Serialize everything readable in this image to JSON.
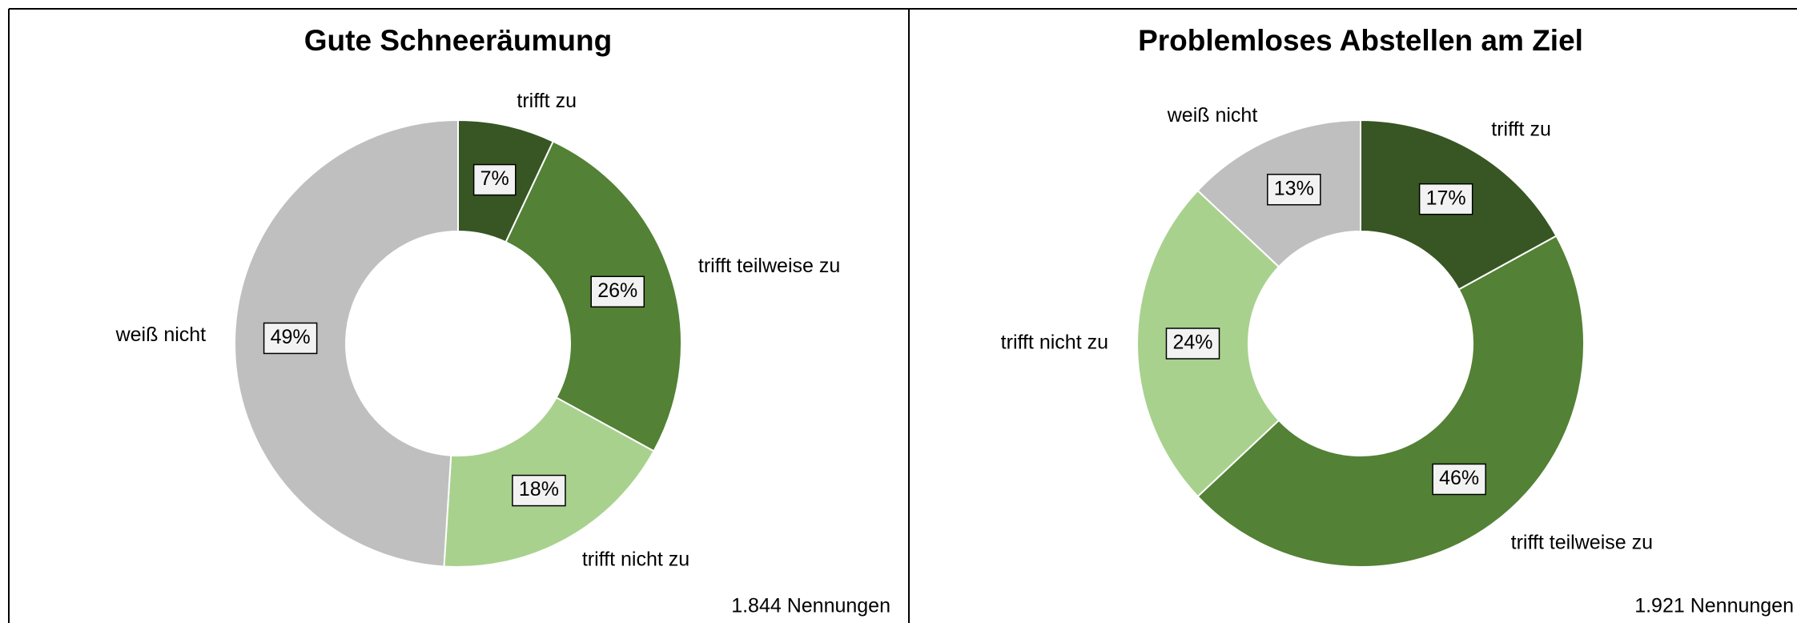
{
  "chart_data": [
    {
      "type": "donut",
      "title": "Gute Schneeräumung",
      "categories": [
        "trifft zu",
        "trifft teilweise zu",
        "trifft nicht zu",
        "weiß nicht"
      ],
      "values": [
        7,
        26,
        18,
        49
      ],
      "value_labels": [
        "7%",
        "26%",
        "18%",
        "49%"
      ],
      "colors": [
        "#375623",
        "#538135",
        "#a9d18e",
        "#bfbfbf"
      ],
      "annotation": "1.844 Nennungen"
    },
    {
      "type": "donut",
      "title": "Problemloses Abstellen am Ziel",
      "categories": [
        "trifft zu",
        "trifft teilweise zu",
        "trifft nicht zu",
        "weiß nicht"
      ],
      "values": [
        17,
        46,
        24,
        13
      ],
      "value_labels": [
        "17%",
        "46%",
        "24%",
        "13%"
      ],
      "colors": [
        "#375623",
        "#538135",
        "#a9d18e",
        "#bfbfbf"
      ],
      "annotation": "1.921 Nennungen"
    }
  ]
}
